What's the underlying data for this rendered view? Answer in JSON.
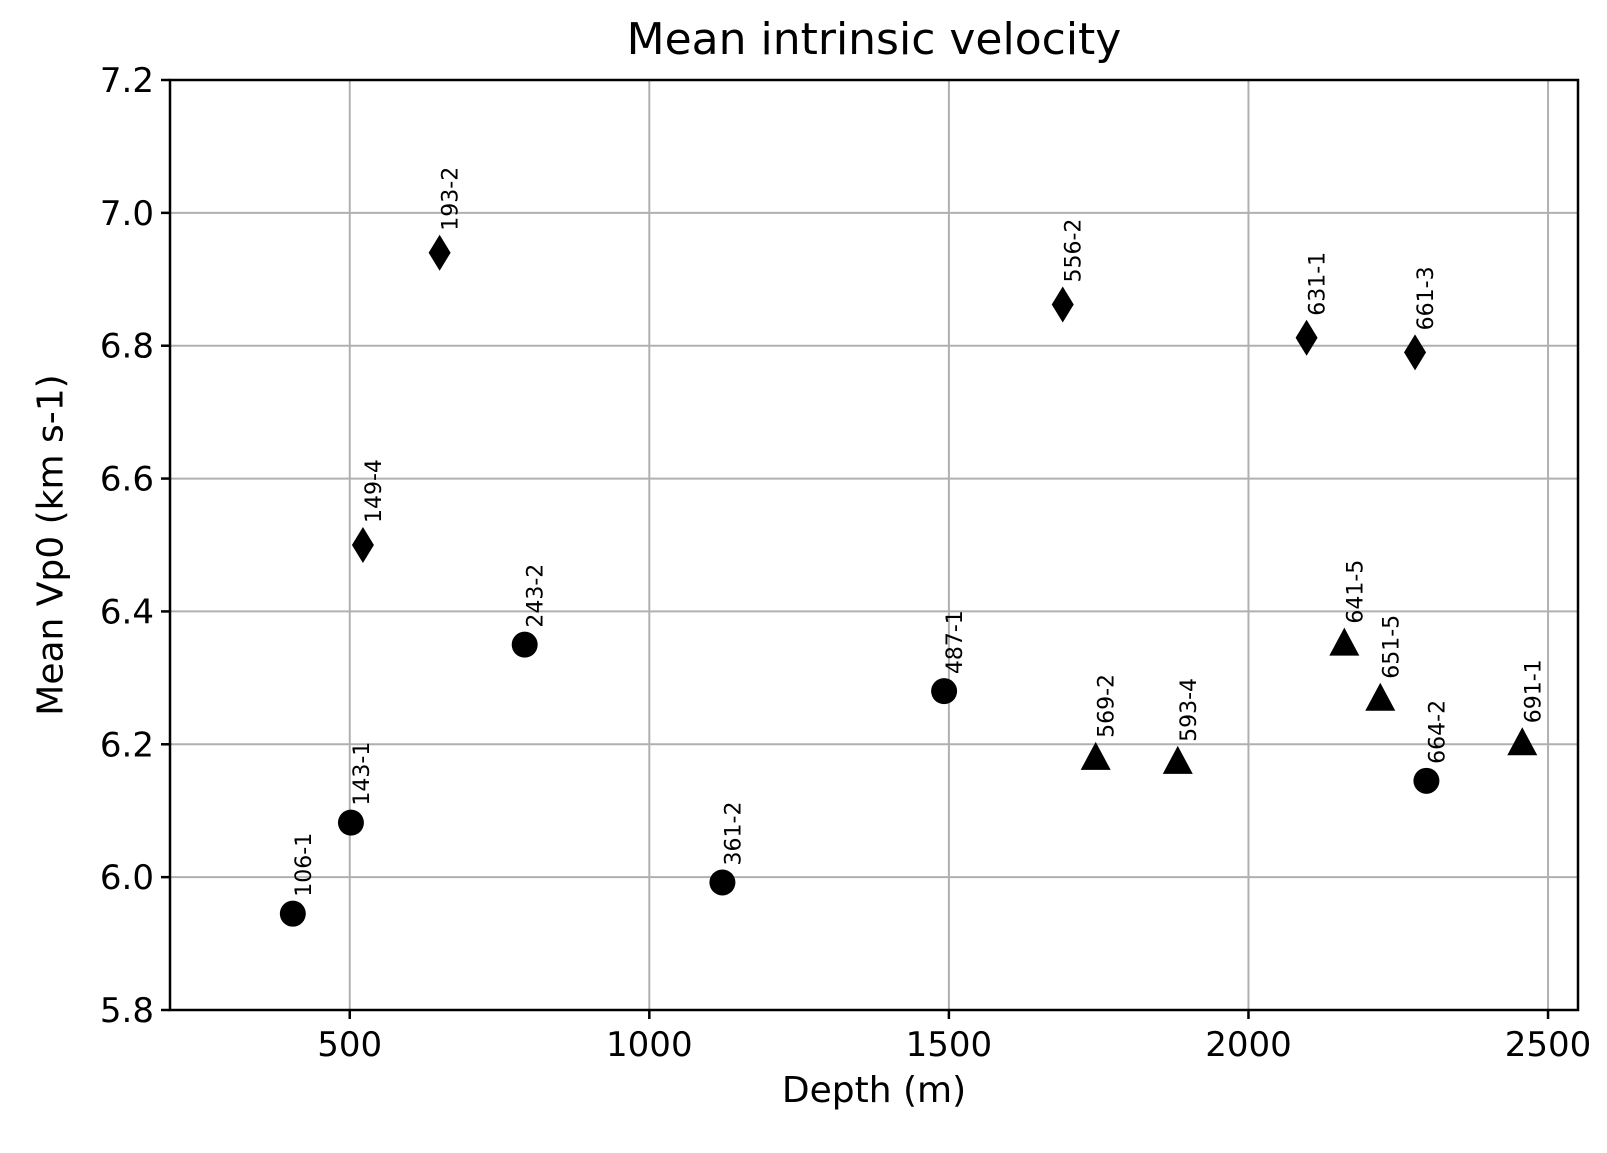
{
  "chart_data": {
    "type": "scatter",
    "title": "Mean intrinsic velocity",
    "xlabel": "Depth (m)",
    "ylabel": "Mean Vp0 (km s-1)",
    "xlim": [
      200,
      2550
    ],
    "ylim": [
      5.8,
      7.2
    ],
    "xticks": [
      500,
      1000,
      1500,
      2000,
      2500
    ],
    "yticks": [
      5.8,
      6.0,
      6.2,
      6.4,
      6.6,
      6.8,
      7.0,
      7.2
    ],
    "xtick_labels": [
      "500",
      "1000",
      "1500",
      "2000",
      "2500"
    ],
    "ytick_labels": [
      "5.8",
      "6.0",
      "6.2",
      "6.4",
      "6.6",
      "6.8",
      "7.0",
      "7.2"
    ],
    "grid": true,
    "marker_color": "#000000",
    "points": [
      {
        "label": "106-1",
        "x": 405,
        "y": 5.945,
        "marker": "circle"
      },
      {
        "label": "143-1",
        "x": 502,
        "y": 6.082,
        "marker": "circle"
      },
      {
        "label": "149-4",
        "x": 522,
        "y": 6.5,
        "marker": "diamond"
      },
      {
        "label": "193-2",
        "x": 650,
        "y": 6.94,
        "marker": "diamond"
      },
      {
        "label": "243-2",
        "x": 792,
        "y": 6.35,
        "marker": "circle"
      },
      {
        "label": "361-2",
        "x": 1122,
        "y": 5.992,
        "marker": "circle"
      },
      {
        "label": "487-1",
        "x": 1492,
        "y": 6.28,
        "marker": "circle"
      },
      {
        "label": "556-2",
        "x": 1690,
        "y": 6.862,
        "marker": "diamond"
      },
      {
        "label": "569-2",
        "x": 1745,
        "y": 6.178,
        "marker": "triangle"
      },
      {
        "label": "593-4",
        "x": 1882,
        "y": 6.172,
        "marker": "triangle"
      },
      {
        "label": "631-1",
        "x": 2097,
        "y": 6.812,
        "marker": "diamond"
      },
      {
        "label": "641-5",
        "x": 2160,
        "y": 6.35,
        "marker": "triangle"
      },
      {
        "label": "651-5",
        "x": 2220,
        "y": 6.267,
        "marker": "triangle"
      },
      {
        "label": "661-3",
        "x": 2278,
        "y": 6.79,
        "marker": "diamond"
      },
      {
        "label": "664-2",
        "x": 2297,
        "y": 6.145,
        "marker": "circle"
      },
      {
        "label": "691-1",
        "x": 2457,
        "y": 6.2,
        "marker": "triangle"
      }
    ]
  }
}
